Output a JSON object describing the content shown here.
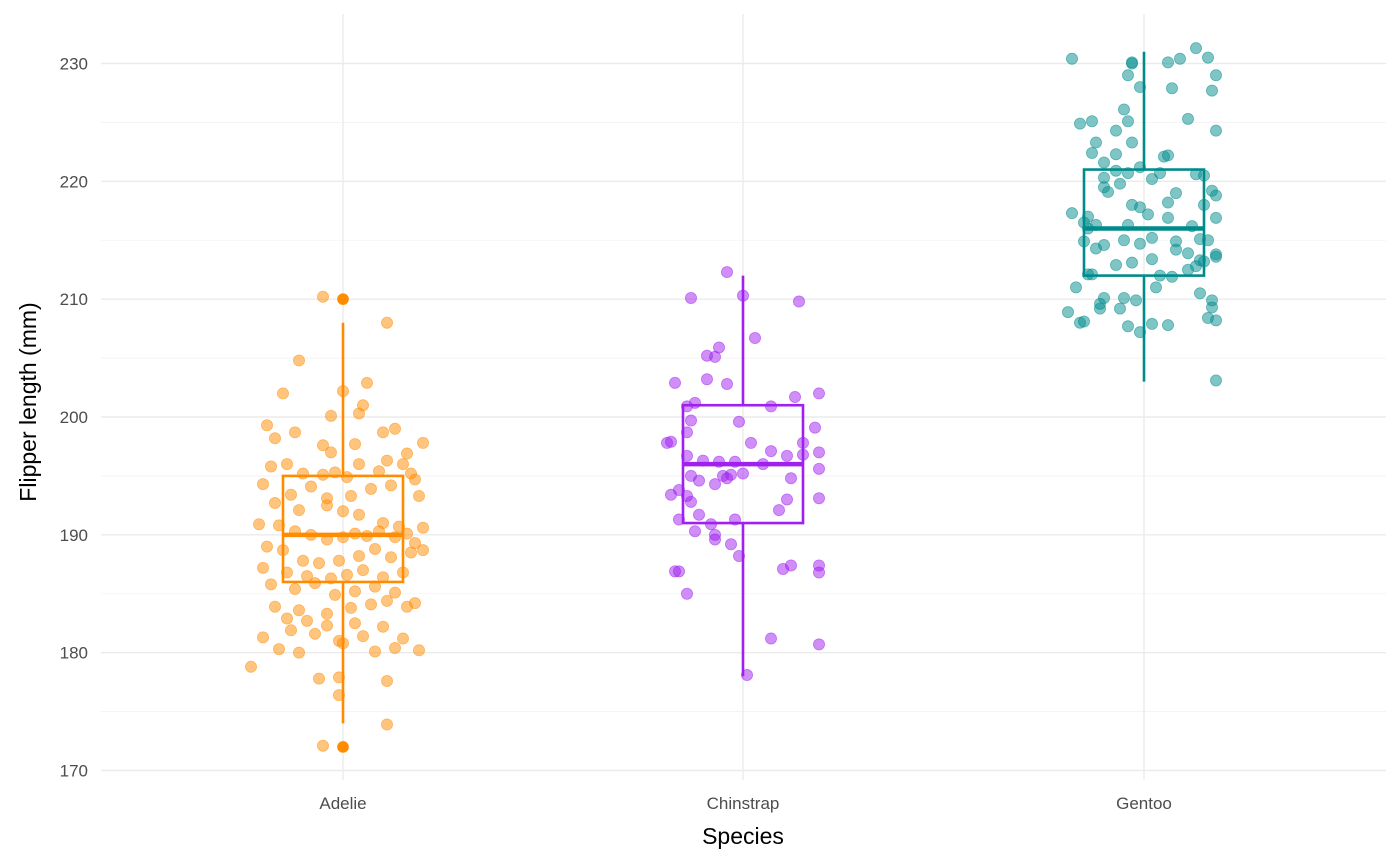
{
  "chart_data": {
    "type": "box",
    "xlabel": "Species",
    "ylabel": "Flipper length (mm)",
    "ylim": [
      168.5,
      233.5
    ],
    "yticks": [
      170,
      180,
      190,
      200,
      210,
      220,
      230
    ],
    "categories": [
      "Adelie",
      "Chinstrap",
      "Gentoo"
    ],
    "grid": true,
    "series": [
      {
        "name": "Adelie",
        "color": "#FF8C00",
        "box": {
          "min": 174,
          "q1": 186,
          "median": 190,
          "q3": 195,
          "max": 208
        },
        "outliers": [
          210,
          172
        ],
        "points": [
          [
            -0.05,
            210.2
          ],
          [
            0.0,
            210.0
          ],
          [
            0.11,
            208.0
          ],
          [
            -0.11,
            204.8
          ],
          [
            -0.15,
            202.0
          ],
          [
            0.0,
            202.2
          ],
          [
            0.06,
            202.9
          ],
          [
            -0.19,
            199.3
          ],
          [
            -0.17,
            198.2
          ],
          [
            -0.12,
            198.7
          ],
          [
            -0.05,
            197.6
          ],
          [
            -0.03,
            197.0
          ],
          [
            0.03,
            197.7
          ],
          [
            0.1,
            198.7
          ],
          [
            0.13,
            199.0
          ],
          [
            0.2,
            197.8
          ],
          [
            -0.03,
            200.1
          ],
          [
            0.04,
            200.3
          ],
          [
            0.05,
            201.0
          ],
          [
            0.16,
            196.9
          ],
          [
            -0.14,
            196.0
          ],
          [
            -0.18,
            195.8
          ],
          [
            -0.1,
            195.2
          ],
          [
            -0.05,
            195.1
          ],
          [
            -0.02,
            195.3
          ],
          [
            0.01,
            194.9
          ],
          [
            0.04,
            196.0
          ],
          [
            0.09,
            195.4
          ],
          [
            0.11,
            196.3
          ],
          [
            0.15,
            196.0
          ],
          [
            0.17,
            195.2
          ],
          [
            -0.2,
            194.3
          ],
          [
            -0.08,
            194.1
          ],
          [
            -0.13,
            193.4
          ],
          [
            -0.04,
            193.1
          ],
          [
            0.02,
            193.3
          ],
          [
            0.07,
            193.9
          ],
          [
            0.12,
            194.2
          ],
          [
            0.18,
            194.7
          ],
          [
            0.19,
            193.3
          ],
          [
            -0.17,
            192.7
          ],
          [
            -0.11,
            192.1
          ],
          [
            -0.04,
            192.5
          ],
          [
            0.0,
            192.0
          ],
          [
            0.04,
            191.7
          ],
          [
            0.1,
            191.0
          ],
          [
            0.14,
            190.7
          ],
          [
            0.2,
            190.6
          ],
          [
            -0.21,
            190.9
          ],
          [
            -0.16,
            190.8
          ],
          [
            -0.12,
            190.3
          ],
          [
            -0.08,
            190.0
          ],
          [
            -0.04,
            189.6
          ],
          [
            0.0,
            189.8
          ],
          [
            0.03,
            190.1
          ],
          [
            0.06,
            189.9
          ],
          [
            0.09,
            190.3
          ],
          [
            0.13,
            189.8
          ],
          [
            0.16,
            190.1
          ],
          [
            0.18,
            189.3
          ],
          [
            -0.19,
            189.0
          ],
          [
            -0.15,
            188.7
          ],
          [
            -0.1,
            187.8
          ],
          [
            -0.06,
            187.6
          ],
          [
            -0.01,
            187.8
          ],
          [
            0.04,
            188.2
          ],
          [
            0.08,
            188.8
          ],
          [
            0.12,
            188.1
          ],
          [
            0.17,
            188.5
          ],
          [
            0.2,
            188.7
          ],
          [
            -0.2,
            187.2
          ],
          [
            -0.14,
            186.8
          ],
          [
            -0.09,
            186.5
          ],
          [
            -0.03,
            186.3
          ],
          [
            0.01,
            186.6
          ],
          [
            0.05,
            187.0
          ],
          [
            0.1,
            186.4
          ],
          [
            0.15,
            186.8
          ],
          [
            -0.18,
            185.8
          ],
          [
            -0.12,
            185.4
          ],
          [
            -0.07,
            185.9
          ],
          [
            -0.02,
            184.9
          ],
          [
            0.03,
            185.2
          ],
          [
            0.08,
            185.6
          ],
          [
            0.13,
            185.1
          ],
          [
            0.18,
            184.2
          ],
          [
            -0.17,
            183.9
          ],
          [
            -0.11,
            183.6
          ],
          [
            -0.04,
            183.3
          ],
          [
            0.02,
            183.8
          ],
          [
            0.07,
            184.1
          ],
          [
            0.11,
            184.4
          ],
          [
            0.16,
            183.9
          ],
          [
            -0.14,
            182.9
          ],
          [
            -0.09,
            182.7
          ],
          [
            -0.04,
            182.3
          ],
          [
            0.03,
            182.5
          ],
          [
            0.1,
            182.2
          ],
          [
            -0.2,
            181.3
          ],
          [
            -0.13,
            181.9
          ],
          [
            -0.07,
            181.6
          ],
          [
            -0.01,
            181.0
          ],
          [
            0.05,
            181.4
          ],
          [
            0.15,
            181.2
          ],
          [
            -0.16,
            180.3
          ],
          [
            -0.11,
            180.0
          ],
          [
            0.0,
            180.8
          ],
          [
            0.08,
            180.1
          ],
          [
            0.13,
            180.4
          ],
          [
            0.19,
            180.2
          ],
          [
            -0.23,
            178.8
          ],
          [
            -0.06,
            177.8
          ],
          [
            -0.01,
            177.9
          ],
          [
            0.11,
            177.6
          ],
          [
            -0.01,
            176.4
          ],
          [
            0.11,
            173.9
          ],
          [
            -0.05,
            172.1
          ],
          [
            0.0,
            172.0
          ]
        ]
      },
      {
        "name": "Chinstrap",
        "color": "#A020F0",
        "box": {
          "min": 178,
          "q1": 191,
          "median": 196,
          "q3": 201,
          "max": 212
        },
        "outliers": [],
        "points": [
          [
            -0.04,
            212.3
          ],
          [
            -0.13,
            210.1
          ],
          [
            0.0,
            210.3
          ],
          [
            0.14,
            209.8
          ],
          [
            0.03,
            206.7
          ],
          [
            -0.06,
            205.9
          ],
          [
            -0.07,
            205.1
          ],
          [
            -0.09,
            205.2
          ],
          [
            -0.09,
            203.2
          ],
          [
            -0.17,
            202.9
          ],
          [
            -0.04,
            202.8
          ],
          [
            0.13,
            201.7
          ],
          [
            0.19,
            202.0
          ],
          [
            -0.12,
            201.2
          ],
          [
            -0.14,
            200.9
          ],
          [
            0.07,
            200.9
          ],
          [
            -0.13,
            199.7
          ],
          [
            -0.01,
            199.6
          ],
          [
            -0.14,
            198.7
          ],
          [
            -0.18,
            197.9
          ],
          [
            -0.19,
            197.8
          ],
          [
            0.02,
            197.8
          ],
          [
            0.15,
            197.8
          ],
          [
            0.18,
            199.1
          ],
          [
            0.19,
            197.0
          ],
          [
            -0.14,
            196.7
          ],
          [
            0.07,
            197.1
          ],
          [
            0.11,
            196.7
          ],
          [
            0.15,
            196.8
          ],
          [
            -0.1,
            196.3
          ],
          [
            -0.06,
            196.2
          ],
          [
            -0.02,
            196.2
          ],
          [
            0.05,
            196.0
          ],
          [
            -0.13,
            195.0
          ],
          [
            -0.11,
            194.6
          ],
          [
            -0.05,
            195.0
          ],
          [
            -0.04,
            194.8
          ],
          [
            -0.03,
            195.1
          ],
          [
            0.0,
            195.2
          ],
          [
            0.12,
            194.8
          ],
          [
            0.19,
            195.6
          ],
          [
            -0.07,
            194.3
          ],
          [
            -0.16,
            193.8
          ],
          [
            -0.18,
            193.4
          ],
          [
            -0.14,
            193.3
          ],
          [
            0.11,
            193.0
          ],
          [
            -0.13,
            192.8
          ],
          [
            -0.11,
            191.7
          ],
          [
            -0.16,
            191.3
          ],
          [
            0.09,
            192.1
          ],
          [
            0.19,
            193.1
          ],
          [
            -0.08,
            190.9
          ],
          [
            -0.02,
            191.3
          ],
          [
            -0.12,
            190.3
          ],
          [
            -0.07,
            190.0
          ],
          [
            -0.07,
            189.6
          ],
          [
            -0.03,
            189.2
          ],
          [
            -0.01,
            188.2
          ],
          [
            0.19,
            187.4
          ],
          [
            0.19,
            186.8
          ],
          [
            0.1,
            187.1
          ],
          [
            0.12,
            187.4
          ],
          [
            -0.16,
            186.9
          ],
          [
            -0.17,
            186.9
          ],
          [
            -0.14,
            185.0
          ],
          [
            0.07,
            181.2
          ],
          [
            0.19,
            180.7
          ],
          [
            0.01,
            178.1
          ]
        ]
      },
      {
        "name": "Gentoo",
        "color": "#008B8B",
        "box": {
          "min": 203,
          "q1": 212,
          "median": 216,
          "q3": 221,
          "max": 231
        },
        "outliers": [],
        "points": [
          [
            -0.18,
            230.4
          ],
          [
            -0.03,
            230.0
          ],
          [
            -0.03,
            230.1
          ],
          [
            0.06,
            230.1
          ],
          [
            0.09,
            230.4
          ],
          [
            0.13,
            231.3
          ],
          [
            0.16,
            230.5
          ],
          [
            0.18,
            229.0
          ],
          [
            -0.04,
            229.0
          ],
          [
            -0.01,
            228.0
          ],
          [
            0.07,
            227.9
          ],
          [
            0.17,
            227.7
          ],
          [
            0.11,
            225.3
          ],
          [
            -0.05,
            226.1
          ],
          [
            -0.16,
            224.9
          ],
          [
            -0.13,
            225.1
          ],
          [
            -0.04,
            225.1
          ],
          [
            -0.07,
            224.3
          ],
          [
            0.18,
            224.3
          ],
          [
            -0.12,
            223.3
          ],
          [
            -0.03,
            223.3
          ],
          [
            -0.07,
            222.3
          ],
          [
            -0.13,
            222.4
          ],
          [
            0.05,
            222.1
          ],
          [
            0.06,
            222.2
          ],
          [
            0.15,
            220.5
          ],
          [
            0.13,
            220.6
          ],
          [
            -0.1,
            221.6
          ],
          [
            -0.07,
            220.9
          ],
          [
            -0.04,
            220.7
          ],
          [
            -0.01,
            221.2
          ],
          [
            0.02,
            220.2
          ],
          [
            0.04,
            220.7
          ],
          [
            0.08,
            219.0
          ],
          [
            -0.1,
            220.3
          ],
          [
            -0.06,
            219.8
          ],
          [
            -0.1,
            219.5
          ],
          [
            -0.09,
            219.1
          ],
          [
            -0.03,
            218.0
          ],
          [
            -0.01,
            217.8
          ],
          [
            0.06,
            218.2
          ],
          [
            0.17,
            219.2
          ],
          [
            0.18,
            218.8
          ],
          [
            0.15,
            218.0
          ],
          [
            -0.14,
            217.0
          ],
          [
            -0.18,
            217.3
          ],
          [
            -0.15,
            216.5
          ],
          [
            -0.12,
            216.3
          ],
          [
            -0.04,
            216.3
          ],
          [
            0.01,
            217.2
          ],
          [
            0.06,
            216.9
          ],
          [
            0.12,
            216.2
          ],
          [
            0.18,
            216.9
          ],
          [
            -0.14,
            216.0
          ],
          [
            0.02,
            215.2
          ],
          [
            0.08,
            214.9
          ],
          [
            0.14,
            215.1
          ],
          [
            0.16,
            215.0
          ],
          [
            -0.15,
            214.9
          ],
          [
            -0.12,
            214.3
          ],
          [
            -0.1,
            214.6
          ],
          [
            -0.05,
            215.0
          ],
          [
            -0.01,
            214.7
          ],
          [
            0.08,
            214.2
          ],
          [
            0.11,
            213.9
          ],
          [
            0.14,
            213.3
          ],
          [
            0.15,
            213.2
          ],
          [
            0.18,
            213.8
          ],
          [
            0.18,
            213.6
          ],
          [
            -0.03,
            213.1
          ],
          [
            -0.07,
            212.9
          ],
          [
            -0.14,
            212.1
          ],
          [
            -0.13,
            212.1
          ],
          [
            0.02,
            213.4
          ],
          [
            0.04,
            212.0
          ],
          [
            0.07,
            211.9
          ],
          [
            0.11,
            212.5
          ],
          [
            0.13,
            212.8
          ],
          [
            -0.17,
            211.0
          ],
          [
            -0.1,
            210.1
          ],
          [
            -0.05,
            210.1
          ],
          [
            -0.02,
            209.9
          ],
          [
            -0.11,
            209.6
          ],
          [
            0.03,
            211.0
          ],
          [
            0.14,
            210.5
          ],
          [
            0.17,
            209.9
          ],
          [
            -0.11,
            209.2
          ],
          [
            -0.06,
            209.2
          ],
          [
            -0.19,
            208.9
          ],
          [
            0.17,
            209.3
          ],
          [
            -0.16,
            208.0
          ],
          [
            0.18,
            208.2
          ],
          [
            -0.15,
            208.1
          ],
          [
            0.02,
            207.9
          ],
          [
            -0.01,
            207.2
          ],
          [
            0.06,
            207.8
          ],
          [
            -0.04,
            207.7
          ],
          [
            0.16,
            208.4
          ],
          [
            0.18,
            203.1
          ]
        ]
      }
    ]
  }
}
